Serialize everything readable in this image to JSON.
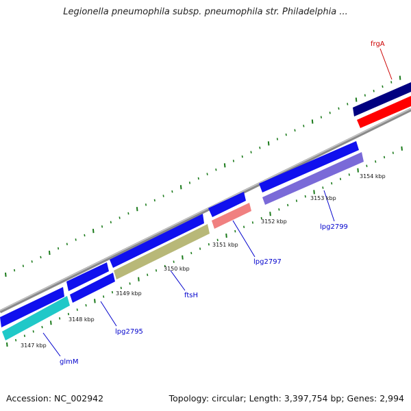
{
  "title": "Legionella pneumophila subsp. pneumophila str. Philadelphia ...",
  "accession": "Accession: NC_002942",
  "topology": "Topology: circular; Length: 3,397,754 bp; Genes: 2,994",
  "colors": {
    "forward_gene": "#1010ee",
    "forward_dark": "#000080",
    "backbone": "#8a8a8a",
    "tick": "#1a7a1a",
    "frgA": "#ff0000",
    "glmM": "#20c8c8",
    "ftsH": "#b8b878",
    "lpg2797": "#f08080",
    "lpg2799": "#7a6ad8",
    "label_link": "#0000cc"
  },
  "kbp_ticks": [
    "3147 kbp",
    "3148 kbp",
    "3149 kbp",
    "3150 kbp",
    "3151 kbp",
    "3152 kbp",
    "3153 kbp",
    "3154 kbp"
  ],
  "gene_labels": [
    "glmM",
    "lpg2795",
    "ftsH",
    "lpg2797",
    "lpg2799",
    "frgA"
  ]
}
